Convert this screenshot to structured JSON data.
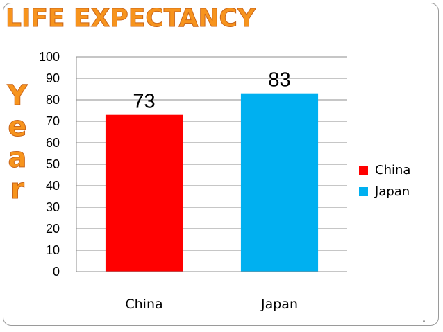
{
  "page": {
    "title": "LIFE EXPECTANCY",
    "side_label": "Year"
  },
  "chart_data": {
    "type": "bar",
    "categories": [
      "China",
      "Japan"
    ],
    "values": [
      73,
      83
    ],
    "data_labels": [
      "73",
      "83"
    ],
    "colors": [
      "#ff0000",
      "#00b0f0"
    ],
    "ylim": [
      0,
      100
    ],
    "yticks": [
      0,
      10,
      20,
      30,
      40,
      50,
      60,
      70,
      80,
      90,
      100
    ],
    "grid": true,
    "legend": {
      "position": "right",
      "entries": [
        {
          "label": "China",
          "color": "#ff0000"
        },
        {
          "label": "Japan",
          "color": "#00b0f0"
        }
      ]
    }
  }
}
